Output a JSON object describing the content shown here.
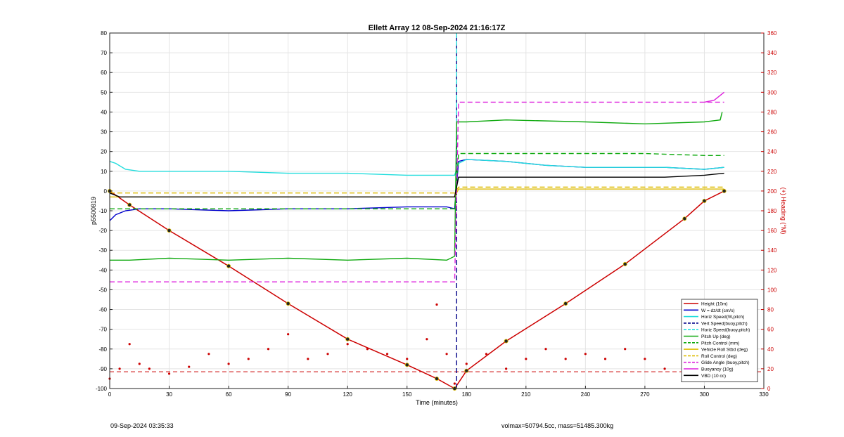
{
  "chart_data": {
    "type": "line",
    "title": "Ellett Array 12 08-Sep-2024 21:16:17Z",
    "xlabel": "Time (minutes)",
    "ylabel": "p5500819",
    "y2label": "(+) Heading (°M)",
    "xlim": [
      0,
      330
    ],
    "ylim": [
      -100,
      80
    ],
    "y2lim": [
      0,
      360
    ],
    "xticks": [
      0,
      30,
      60,
      90,
      120,
      150,
      180,
      210,
      240,
      270,
      300,
      330
    ],
    "yticks": [
      -100,
      -90,
      -80,
      -70,
      -60,
      -50,
      -40,
      -30,
      -20,
      -10,
      0,
      10,
      20,
      30,
      40,
      50,
      60,
      70,
      80
    ],
    "y2ticks": [
      0,
      20,
      40,
      60,
      80,
      100,
      120,
      140,
      160,
      180,
      200,
      220,
      240,
      260,
      280,
      300,
      320,
      340,
      360
    ],
    "grid": true,
    "legend_position": "bottom-right",
    "series": [
      {
        "name": "Height (10m)",
        "color": "#cc0000",
        "style": "solid",
        "x": [
          0,
          10,
          30,
          60,
          90,
          120,
          150,
          165,
          174,
          180,
          200,
          230,
          260,
          290,
          300,
          310
        ],
        "y": [
          0,
          -7,
          -20,
          -38,
          -57,
          -75,
          -88,
          -95,
          -100,
          -91,
          -76,
          -57,
          -37,
          -14,
          -5,
          0
        ]
      },
      {
        "name": "W = dz/dt (cm/s)",
        "color": "#0000cc",
        "style": "solid",
        "x": [
          0,
          3,
          8,
          15,
          30,
          60,
          90,
          120,
          150,
          170,
          174,
          176,
          180,
          200,
          220,
          240,
          260,
          280,
          300,
          310
        ],
        "y": [
          -15,
          -12,
          -10,
          -9,
          -9,
          -10,
          -9,
          -9,
          -8,
          -8,
          -9,
          15,
          16,
          15,
          13,
          12,
          12,
          12,
          11,
          12
        ]
      },
      {
        "name": "Horiz Speed(W,pitch)",
        "color": "#22dddd",
        "style": "solid",
        "x": [
          0,
          3,
          8,
          15,
          30,
          60,
          90,
          120,
          150,
          170,
          174,
          176,
          180,
          200,
          220,
          240,
          260,
          280,
          300,
          310
        ],
        "y": [
          15,
          14,
          11,
          10,
          10,
          10,
          9,
          9,
          8,
          8,
          8,
          14,
          16,
          15,
          13,
          12,
          12,
          12,
          11,
          12
        ]
      },
      {
        "name": "Vert Speed(buoy,pitch)",
        "color": "#000088",
        "style": "dashed",
        "x": [
          175,
          175
        ],
        "y": [
          -100,
          80
        ]
      },
      {
        "name": "Horiz Speed(buoy,pitch)",
        "color": "#22dddd",
        "style": "dashed",
        "x": [
          175,
          175
        ],
        "y": [
          80,
          0
        ]
      },
      {
        "name": "Pitch Up (deg)",
        "color": "#11aa11",
        "style": "solid",
        "x": [
          0,
          10,
          30,
          60,
          90,
          120,
          150,
          170,
          174,
          175,
          180,
          200,
          240,
          270,
          300,
          308,
          309
        ],
        "y": [
          -35,
          -35,
          -34,
          -35,
          -34,
          -35,
          -34,
          -35,
          -33,
          35,
          35,
          36,
          35,
          34,
          35,
          36,
          40
        ]
      },
      {
        "name": "Pitch Control (mm)",
        "color": "#11aa11",
        "style": "dashed",
        "x": [
          0,
          30,
          60,
          90,
          120,
          150,
          174,
          176,
          200,
          240,
          270,
          300,
          310
        ],
        "y": [
          -9,
          -9,
          -9,
          -9,
          -9,
          -9,
          -9,
          19,
          19,
          19,
          19,
          18,
          18
        ]
      },
      {
        "name": "Vehicle Roll Stbd (deg)",
        "color": "#ddbb00",
        "style": "solid",
        "x": [
          0,
          30,
          60,
          90,
          120,
          150,
          174,
          176,
          200,
          240,
          270,
          300,
          310
        ],
        "y": [
          -3,
          -3,
          -3,
          -3,
          -3,
          -3,
          -3,
          1,
          1,
          1,
          1,
          1,
          1
        ]
      },
      {
        "name": "Roll Control (deg)",
        "color": "#ddbb00",
        "style": "dashed",
        "x": [
          0,
          30,
          60,
          90,
          120,
          150,
          174,
          176,
          200,
          240,
          270,
          300,
          310
        ],
        "y": [
          -1,
          -1,
          -1,
          -1,
          -1,
          -1,
          -1,
          2,
          2,
          2,
          2,
          2,
          2
        ]
      },
      {
        "name": "Glide Angle (buoy,pitch)",
        "color": "#dd22dd",
        "style": "dashed",
        "x": [
          0,
          30,
          60,
          90,
          120,
          150,
          174,
          176,
          200,
          240,
          270,
          300,
          310
        ],
        "y": [
          -46,
          -46,
          -46,
          -46,
          -46,
          -46,
          -46,
          45,
          45,
          45,
          45,
          45,
          45
        ]
      },
      {
        "name": "Buoyancy (10g)",
        "color": "#dd22dd",
        "style": "solid",
        "x": [
          300,
          305,
          310
        ],
        "y": [
          45,
          46,
          50
        ]
      },
      {
        "name": "VBD (10 cc)",
        "color": "#000000",
        "style": "solid",
        "x": [
          0,
          5,
          30,
          60,
          90,
          120,
          150,
          174,
          176,
          200,
          240,
          280,
          300,
          310
        ],
        "y": [
          -1,
          -3,
          -3,
          -3,
          -3,
          -3,
          -3,
          -3,
          7,
          7,
          7,
          7,
          8,
          9
        ]
      }
    ],
    "heading_series": {
      "name": "Heading",
      "color": "#cc0000",
      "style": "dotted",
      "axis": "right",
      "x": [
        0,
        5,
        10,
        15,
        20,
        30,
        40,
        50,
        60,
        70,
        80,
        90,
        100,
        110,
        120,
        130,
        140,
        150,
        160,
        165,
        170,
        174,
        180,
        190,
        200,
        210,
        220,
        230,
        240,
        250,
        260,
        270,
        280,
        290,
        300,
        310
      ],
      "y": [
        10,
        20,
        45,
        25,
        20,
        15,
        22,
        35,
        25,
        30,
        40,
        55,
        30,
        35,
        45,
        40,
        35,
        30,
        50,
        85,
        35,
        5,
        25,
        35,
        20,
        30,
        40,
        30,
        35,
        30,
        40,
        30,
        20,
        40,
        45,
        50
      ]
    },
    "heading_reference": {
      "axis": "right",
      "value": 17
    },
    "annotations": []
  },
  "footer": {
    "left": "09-Sep-2024 03:35:33",
    "right": "volmax=50794.5cc, mass=51485.300kg"
  }
}
